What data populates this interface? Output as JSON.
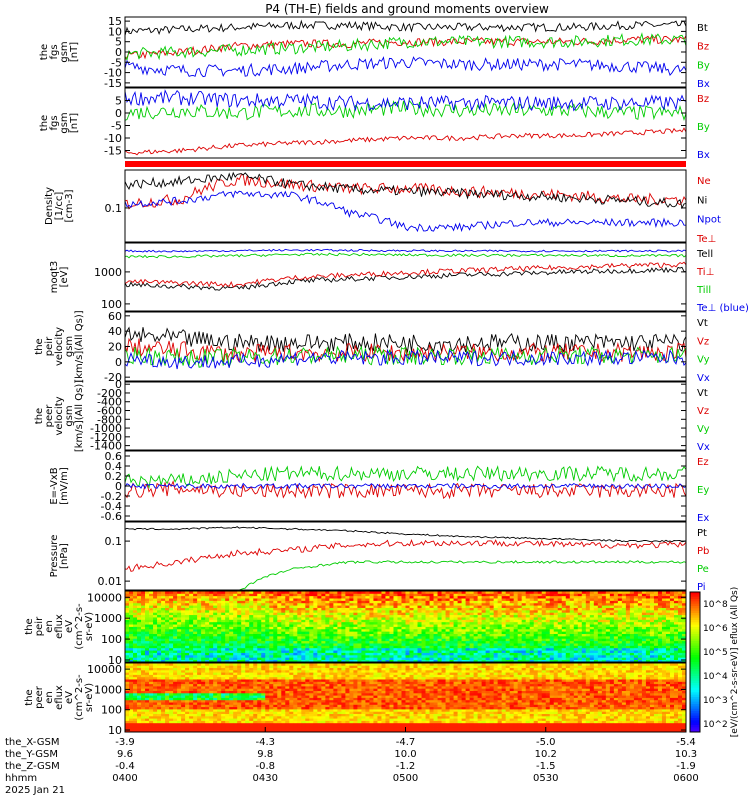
{
  "title": "P4 (TH-E) fields and ground moments overview",
  "chart_data": {
    "type": "line",
    "panels": [
      {
        "ylabel": [
          "the",
          "fgs",
          "gsm",
          "[nT]"
        ],
        "yticks": [
          15,
          10,
          5,
          0,
          -5,
          -10,
          -15
        ],
        "ylim": [
          -17,
          17
        ],
        "log": false,
        "series": [
          {
            "name": "Bt",
            "color": "#000000",
            "values": [
              10,
              11,
              12,
              13,
              13,
              12,
              12,
              12,
              12,
              13,
              13
            ],
            "noise": 2.0
          },
          {
            "name": "Bz",
            "color": "#dd0000",
            "values": [
              -2,
              0,
              3,
              4,
              4,
              5,
              5,
              5,
              5,
              6,
              6
            ],
            "noise": 2.0
          },
          {
            "name": "By",
            "color": "#00cc00",
            "values": [
              -1,
              0,
              1,
              2,
              3,
              5,
              5,
              5,
              5,
              6,
              6
            ],
            "noise": 3.0
          },
          {
            "name": "Bx",
            "color": "#0000ee",
            "values": [
              -7,
              -9,
              -9,
              -8,
              -6,
              -5,
              -6,
              -6,
              -6,
              -7,
              -9
            ],
            "noise": 3.0
          }
        ]
      },
      {
        "ylabel": [
          "the",
          "fgs",
          "gsm",
          "[nT]"
        ],
        "yticks": [
          5,
          0,
          -5,
          -10,
          -15
        ],
        "ylim": [
          -18,
          10
        ],
        "log": false,
        "series": [
          {
            "name": "Bz",
            "color": "#dd0000",
            "values": [
              -16,
              -15,
              -13,
              -12,
              -11,
              -10,
              -10,
              -9,
              -9,
              -8,
              -7
            ],
            "noise": 1.0
          },
          {
            "name": "By",
            "color": "#00cc00",
            "values": [
              0,
              1,
              0,
              1,
              1,
              2,
              1,
              1,
              1,
              0,
              0
            ],
            "noise": 3.0
          },
          {
            "name": "Bx",
            "color": "#0000ee",
            "values": [
              6,
              6,
              5,
              5,
              4,
              4,
              4,
              4,
              4,
              4,
              4
            ],
            "noise": 3.0
          }
        ]
      },
      {
        "ylabel": [
          "Density",
          "[1/cc]",
          "[cm-3]"
        ],
        "yticks": [
          0.1
        ],
        "ylim": [
          0.02,
          0.6
        ],
        "log": true,
        "series": [
          {
            "name": "Ne",
            "color": "#dd0000",
            "values": [
              0.12,
              0.15,
              0.38,
              0.3,
              0.25,
              0.25,
              0.22,
              0.2,
              0.18,
              0.15,
              0.15
            ],
            "noise": 0.12
          },
          {
            "name": "Ni",
            "color": "#000000",
            "values": [
              0.3,
              0.35,
              0.45,
              0.3,
              0.24,
              0.22,
              0.2,
              0.18,
              0.16,
              0.14,
              0.12
            ],
            "noise": 0.1
          },
          {
            "name": "Npot",
            "color": "#0000ee",
            "values": [
              0.12,
              0.14,
              0.2,
              0.18,
              0.08,
              0.04,
              0.04,
              0.05,
              0.05,
              0.05,
              0.05
            ],
            "noise": 0.08
          },
          {
            "name": "Te⊥",
            "color": "#dd0000",
            "values": [],
            "noise": 0
          }
        ]
      },
      {
        "ylabel": [
          "moqt3",
          "[eV]"
        ],
        "yticks": [
          1000,
          100
        ],
        "ylim": [
          60,
          8000
        ],
        "log": true,
        "series": [
          {
            "name": "Tell",
            "color": "#000000",
            "values": [
              400,
              350,
              300,
              500,
              600,
              700,
              800,
              900,
              1000,
              1100,
              1200
            ],
            "noise": 0.08
          },
          {
            "name": "Ti⊥",
            "color": "#dd0000",
            "values": [
              500,
              450,
              400,
              650,
              800,
              950,
              1100,
              1250,
              1400,
              1600,
              1700
            ],
            "noise": 0.08
          },
          {
            "name": "Till",
            "color": "#00cc00",
            "values": [
              3000,
              3000,
              3200,
              3500,
              3500,
              3400,
              3300,
              3300,
              3300,
              3200,
              3200
            ],
            "noise": 0.04
          },
          {
            "name": "Te⊥ (blue)",
            "color": "#0000ee",
            "values": [
              4500,
              4400,
              4600,
              4800,
              4700,
              4600,
              4500,
              4500,
              4500,
              4500,
              4500
            ],
            "noise": 0.03
          }
        ]
      },
      {
        "ylabel": [
          "the",
          "peir",
          "velocity",
          "gsm",
          "[km/s](All Qs)]"
        ],
        "yticks": [
          60,
          40,
          20,
          0,
          -20
        ],
        "ylim": [
          -25,
          65
        ],
        "log": false,
        "series": [
          {
            "name": "Vt",
            "color": "#000000",
            "values": [
              35,
              30,
              25,
              25,
              25,
              25,
              25,
              25,
              25,
              25,
              25
            ],
            "noise": 12
          },
          {
            "name": "Vz",
            "color": "#dd0000",
            "values": [
              20,
              15,
              10,
              12,
              12,
              12,
              12,
              12,
              12,
              12,
              12
            ],
            "noise": 12
          },
          {
            "name": "Vy",
            "color": "#00cc00",
            "values": [
              10,
              5,
              5,
              8,
              8,
              8,
              8,
              8,
              8,
              8,
              8
            ],
            "noise": 12
          },
          {
            "name": "Vx",
            "color": "#0000ee",
            "values": [
              5,
              0,
              0,
              5,
              5,
              5,
              5,
              5,
              5,
              5,
              5
            ],
            "noise": 10
          }
        ]
      },
      {
        "ylabel": [
          "the",
          "peer",
          "velocity",
          "gsm",
          "[km/s](All Qs)]"
        ],
        "yticks": [
          0,
          -200,
          -400,
          -600,
          -800,
          -1000,
          -1200,
          -1400
        ],
        "ylim": [
          -1500,
          50
        ],
        "log": false,
        "series": [
          {
            "name": "Vt",
            "color": "#000000",
            "values": [],
            "noise": 0
          },
          {
            "name": "Vz",
            "color": "#dd0000",
            "values": [],
            "noise": 0
          },
          {
            "name": "Vy",
            "color": "#00cc00",
            "values": [],
            "noise": 0
          },
          {
            "name": "Vx",
            "color": "#0000ee",
            "values": [],
            "noise": 0
          }
        ]
      },
      {
        "ylabel": [
          "E=-VxB",
          "[mV/m]"
        ],
        "yticks": [
          0.6,
          0.4,
          0.2,
          0.0,
          -0.2,
          -0.4,
          -0.6
        ],
        "ylim": [
          -0.7,
          0.7
        ],
        "log": false,
        "series": [
          {
            "name": "Ez",
            "color": "#dd0000",
            "values": [
              -0.1,
              -0.05,
              -0.1,
              -0.1,
              -0.1,
              -0.1,
              -0.1,
              -0.1,
              -0.1,
              -0.1,
              -0.1
            ],
            "noise": 0.15
          },
          {
            "name": "Ey",
            "color": "#00cc00",
            "values": [
              0.1,
              0.1,
              0.2,
              0.25,
              0.25,
              0.25,
              0.25,
              0.25,
              0.25,
              0.25,
              0.25
            ],
            "noise": 0.15
          },
          {
            "name": "Ex",
            "color": "#0000ee",
            "values": [
              0.0,
              0.0,
              0.0,
              0.0,
              0.0,
              0.0,
              0.0,
              0.0,
              0.0,
              0.0,
              0.0
            ],
            "noise": 0.05
          }
        ]
      },
      {
        "ylabel": [
          "Pressure",
          "[nPa]"
        ],
        "yticks": [
          0.1,
          0.01
        ],
        "ylim": [
          0.006,
          0.3
        ],
        "log": true,
        "series": [
          {
            "name": "Pt",
            "color": "#000000",
            "values": [
              0.2,
              0.2,
              0.22,
              0.2,
              0.18,
              0.15,
              0.13,
              0.12,
              0.11,
              0.1,
              0.1
            ],
            "noise": 0.02
          },
          {
            "name": "Pb",
            "color": "#dd0000",
            "values": [
              0.02,
              0.03,
              0.05,
              0.06,
              0.08,
              0.09,
              0.09,
              0.09,
              0.08,
              0.08,
              0.08
            ],
            "noise": 0.08
          },
          {
            "name": "Pe",
            "color": "#00cc00",
            "values": [
              0.005,
              0.005,
              0.005,
              0.02,
              0.03,
              0.03,
              0.03,
              0.03,
              0.03,
              0.03,
              0.03
            ],
            "noise": 0.03
          },
          {
            "name": "Pi",
            "color": "#0000ee",
            "values": [],
            "noise": 0
          }
        ]
      },
      {
        "ylabel": [
          "the",
          "peir",
          "en",
          "eflux",
          "eV",
          "(cm^2-s-",
          "sr-eV)"
        ],
        "yticks": [
          10000,
          1000,
          100,
          10
        ],
        "ylim": [
          8,
          20000
        ],
        "log": true,
        "spectrogram": true
      },
      {
        "ylabel": [
          "the",
          "peer",
          "en",
          "eflux",
          "eV",
          "(cm^2-s-",
          "sr-eV)"
        ],
        "yticks": [
          10000,
          1000,
          100,
          10
        ],
        "ylim": [
          8,
          20000
        ],
        "log": true,
        "spectrogram": true
      }
    ],
    "colorbar": {
      "ticks": [
        "10^8",
        "10^6",
        "10^5",
        "10^4",
        "10^3",
        "10^2"
      ],
      "label": "[eV/(cm^2-s-sr-eV)] eflux (All Qs)"
    },
    "x_axis": {
      "rows": [
        {
          "label": "the_X-GSM",
          "values": [
            "-3.9",
            "-4.3",
            "-4.7",
            "-5.0",
            "-5.4"
          ]
        },
        {
          "label": "the_Y-GSM",
          "values": [
            "9.6",
            "9.8",
            "10.0",
            "10.2",
            "10.3"
          ]
        },
        {
          "label": "the_Z-GSM",
          "values": [
            "-0.4",
            "-0.8",
            "-1.2",
            "-1.5",
            "-1.9"
          ]
        },
        {
          "label": "hhmm",
          "values": [
            "0400",
            "0430",
            "0500",
            "0530",
            "0600"
          ]
        }
      ],
      "date": "2025 Jan 21"
    }
  }
}
